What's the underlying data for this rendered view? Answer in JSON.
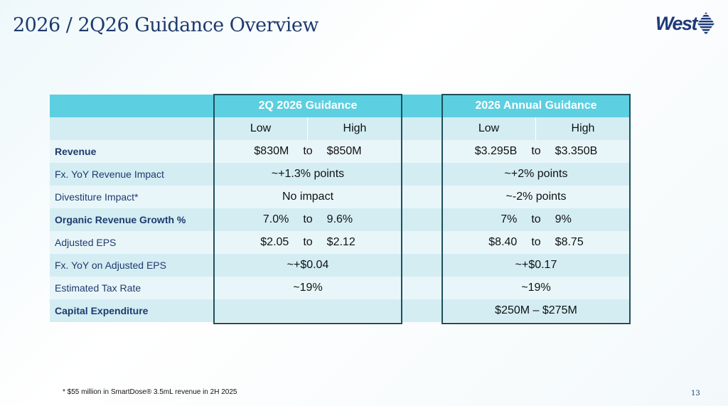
{
  "title": "2026 / 2Q26 Guidance Overview",
  "logo": {
    "text": "West",
    "icon": "diamond-stripes-icon",
    "color": "#1f3a7a"
  },
  "colors": {
    "header": "#5ccfe0",
    "row_dark": "#d3edf3",
    "row_light": "#e9f6f9",
    "border": "#1f4f5a"
  },
  "table": {
    "q2_header": "2Q 2026 Guidance",
    "annual_header": "2026 Annual Guidance",
    "low": "Low",
    "high": "High",
    "to": "to",
    "rows": [
      {
        "label": "Revenue",
        "bold": true,
        "q2": {
          "low": "$830M",
          "high": "$850M"
        },
        "annual": {
          "low": "$3.295B",
          "high": "$3.350B"
        }
      },
      {
        "label": "Fx. YoY Revenue Impact",
        "q2": {
          "value": "~+1.3% points"
        },
        "annual": {
          "value": "~+2% points"
        }
      },
      {
        "label": "Divestiture Impact*",
        "q2": {
          "value": "No impact"
        },
        "annual": {
          "value": "~-2% points"
        }
      },
      {
        "label": "Organic Revenue Growth %",
        "bold": true,
        "q2": {
          "low": "7.0%",
          "high": "9.6%"
        },
        "annual": {
          "low": "7%",
          "high": "9%"
        }
      },
      {
        "label": "Adjusted EPS",
        "q2": {
          "low": "$2.05",
          "high": "$2.12"
        },
        "annual": {
          "low": "$8.40",
          "high": "$8.75"
        }
      },
      {
        "label": "Fx. YoY on Adjusted EPS",
        "q2": {
          "value": "~+$0.04"
        },
        "annual": {
          "value": "~+$0.17"
        }
      },
      {
        "label": "Estimated Tax Rate",
        "q2": {
          "value": "~19%"
        },
        "annual": {
          "value": "~19%"
        }
      },
      {
        "label": "Capital Expenditure",
        "bold": true,
        "q2": {
          "value": ""
        },
        "annual": {
          "value": "$250M – $275M"
        }
      }
    ]
  },
  "footnote": "* $55 million in SmartDose® 3.5mL revenue in 2H 2025",
  "page_number": "13"
}
